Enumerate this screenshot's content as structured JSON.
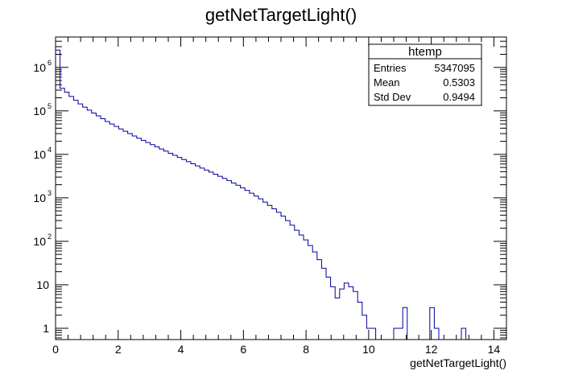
{
  "chart_data": {
    "type": "bar",
    "title": "getNetTargetLight()",
    "xlabel": "getNetTargetLight()",
    "ylabel": "",
    "xlim": [
      0,
      14.4
    ],
    "ylim": [
      0.55,
      5000000
    ],
    "yscale": "log",
    "bin_width": 0.144,
    "x_ticks": [
      0,
      2,
      4,
      6,
      8,
      10,
      12,
      14
    ],
    "y_ticks": [
      {
        "value": 1,
        "base": "1",
        "exp": ""
      },
      {
        "value": 10,
        "base": "10",
        "exp": ""
      },
      {
        "value": 100,
        "base": "10",
        "exp": "2"
      },
      {
        "value": 1000,
        "base": "10",
        "exp": "3"
      },
      {
        "value": 10000,
        "base": "10",
        "exp": "4"
      },
      {
        "value": 100000,
        "base": "10",
        "exp": "5"
      },
      {
        "value": 1000000,
        "base": "10",
        "exp": "6"
      }
    ],
    "values": [
      2500000,
      330000,
      270000,
      215000,
      175000,
      145000,
      122000,
      104000,
      89000,
      77000,
      66000,
      57000,
      50000,
      44000,
      38500,
      34000,
      30000,
      26500,
      23500,
      21000,
      18700,
      16700,
      14900,
      13300,
      11900,
      10600,
      9500,
      8500,
      7600,
      6800,
      6100,
      5450,
      4850,
      4350,
      3900,
      3500,
      3130,
      2800,
      2500,
      2200,
      1950,
      1700,
      1480,
      1280,
      1100,
      950,
      800,
      670,
      560,
      465,
      380,
      300,
      235,
      180,
      140,
      108,
      80,
      57,
      38,
      24,
      15,
      9,
      5,
      8,
      11,
      9,
      7,
      4,
      2,
      1,
      1,
      0,
      0,
      0,
      0,
      1,
      1,
      3,
      0,
      0,
      0,
      0,
      0,
      3,
      1,
      0,
      0,
      0,
      0,
      0,
      1,
      0,
      0,
      0,
      0,
      0,
      0,
      0,
      0,
      0
    ],
    "line_color": "#000099",
    "frame_color": "#000000",
    "grid": false,
    "legend": "top-right"
  },
  "stats_box": {
    "title": "htemp",
    "rows": [
      {
        "label": "Entries",
        "value": "5347095"
      },
      {
        "label": "Mean",
        "value": "0.5303"
      },
      {
        "label": "Std Dev",
        "value": "0.9494"
      }
    ]
  }
}
